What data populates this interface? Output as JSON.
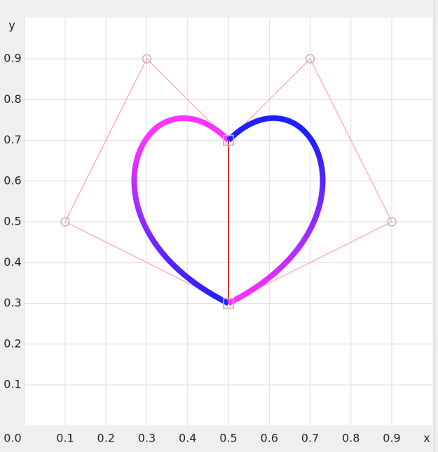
{
  "chart_data": {
    "type": "bezier",
    "x_label": "x",
    "y_label": "y",
    "xlim": [
      0,
      1
    ],
    "ylim": [
      0,
      1
    ],
    "xticks": [
      {
        "value": 0,
        "label": "0.0"
      },
      0.1,
      0.2,
      0.3,
      0.4,
      0.5,
      0.6,
      0.7,
      0.8,
      0.9
    ],
    "yticks": [
      0.1,
      0.2,
      0.3,
      0.4,
      0.5,
      0.6,
      0.7,
      0.8,
      0.9
    ],
    "grid": true,
    "series": [
      {
        "x": [
          0.5,
          0.3,
          0.1,
          0.5
        ],
        "y": [
          0.7,
          0.9,
          0.5,
          0.3
        ],
        "colors": [
          "#ff33ff",
          "#1f1fff"
        ]
      },
      {
        "x": [
          0.5,
          0.7,
          0.9,
          0.5
        ],
        "y": [
          0.7,
          0.9,
          0.5,
          0.3
        ],
        "colors": [
          "#1f1fff",
          "#ff33ff"
        ]
      }
    ],
    "segment": {
      "x": [
        0.5,
        0.5
      ],
      "y": [
        0.7,
        0.3
      ],
      "color": "#cc0000"
    },
    "polygon_color": "#ffaaaa"
  }
}
